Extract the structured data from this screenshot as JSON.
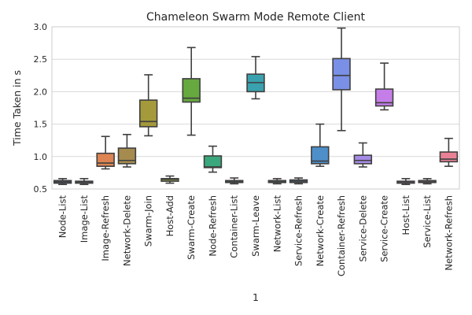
{
  "chart_data": {
    "type": "box",
    "title": "Chameleon Swarm Mode Remote Client",
    "xlabel": "1",
    "ylabel": "Time Taken in s",
    "ylim": [
      0.5,
      3.0
    ],
    "yticks": [
      0.5,
      1.0,
      1.5,
      2.0,
      2.5,
      3.0
    ],
    "ytick_labels": [
      "0.5",
      "1.0",
      "1.5",
      "2.0",
      "2.5",
      "3.0"
    ],
    "grid": true,
    "categories": [
      "Node-List",
      "Image-List",
      "Image-Refresh",
      "Network-Delete",
      "Swarm-Join",
      "Host-Add",
      "Swarm-Create",
      "Node-Refresh",
      "Container-List",
      "Swarm-Leave",
      "Network-List",
      "Service-Refresh",
      "Network-Create",
      "Container-Refresh",
      "Service-Delete",
      "Service-Create",
      "Host-List",
      "Service-List",
      "Network-Refresh"
    ],
    "colors": [
      "#4C72B0",
      "#7B8CC4",
      "#DD8452",
      "#A58B4E",
      "#A59A3B",
      "#8FA33F",
      "#66A93E",
      "#3BA77C",
      "#3BA595",
      "#3AA2AE",
      "#41A0C8",
      "#5E9CE0",
      "#4E8FC9",
      "#7A8FE6",
      "#A68BE6",
      "#C57EE8",
      "#DD7BD0",
      "#E77FB8",
      "#E98196"
    ],
    "boxes": [
      {
        "whislo": 0.57,
        "q1": 0.59,
        "med": 0.61,
        "q3": 0.63,
        "whishi": 0.66
      },
      {
        "whislo": 0.57,
        "q1": 0.59,
        "med": 0.61,
        "q3": 0.62,
        "whishi": 0.66
      },
      {
        "whislo": 0.81,
        "q1": 0.85,
        "med": 0.9,
        "q3": 1.05,
        "whishi": 1.31
      },
      {
        "whislo": 0.84,
        "q1": 0.89,
        "med": 0.94,
        "q3": 1.13,
        "whishi": 1.34
      },
      {
        "whislo": 1.32,
        "q1": 1.46,
        "med": 1.54,
        "q3": 1.87,
        "whishi": 2.26
      },
      {
        "whislo": 0.59,
        "q1": 0.62,
        "med": 0.65,
        "q3": 0.66,
        "whishi": 0.7
      },
      {
        "whislo": 1.33,
        "q1": 1.84,
        "med": 1.9,
        "q3": 2.2,
        "whishi": 2.68
      },
      {
        "whislo": 0.76,
        "q1": 0.83,
        "med": 0.84,
        "q3": 1.01,
        "whishi": 1.16
      },
      {
        "whislo": 0.58,
        "q1": 0.6,
        "med": 0.61,
        "q3": 0.63,
        "whishi": 0.67
      },
      {
        "whislo": 1.89,
        "q1": 2.0,
        "med": 2.14,
        "q3": 2.27,
        "whishi": 2.54
      },
      {
        "whislo": 0.58,
        "q1": 0.6,
        "med": 0.61,
        "q3": 0.63,
        "whishi": 0.66
      },
      {
        "whislo": 0.58,
        "q1": 0.6,
        "med": 0.62,
        "q3": 0.64,
        "whishi": 0.67
      },
      {
        "whislo": 0.85,
        "q1": 0.89,
        "med": 0.93,
        "q3": 1.15,
        "whishi": 1.5
      },
      {
        "whislo": 1.4,
        "q1": 2.03,
        "med": 2.25,
        "q3": 2.51,
        "whishi": 2.98
      },
      {
        "whislo": 0.84,
        "q1": 0.89,
        "med": 0.94,
        "q3": 1.02,
        "whishi": 1.21
      },
      {
        "whislo": 1.72,
        "q1": 1.78,
        "med": 1.83,
        "q3": 2.04,
        "whishi": 2.44
      },
      {
        "whislo": 0.57,
        "q1": 0.59,
        "med": 0.61,
        "q3": 0.62,
        "whishi": 0.66
      },
      {
        "whislo": 0.58,
        "q1": 0.6,
        "med": 0.61,
        "q3": 0.63,
        "whishi": 0.66
      },
      {
        "whislo": 0.85,
        "q1": 0.92,
        "med": 0.96,
        "q3": 1.07,
        "whishi": 1.28
      }
    ]
  }
}
